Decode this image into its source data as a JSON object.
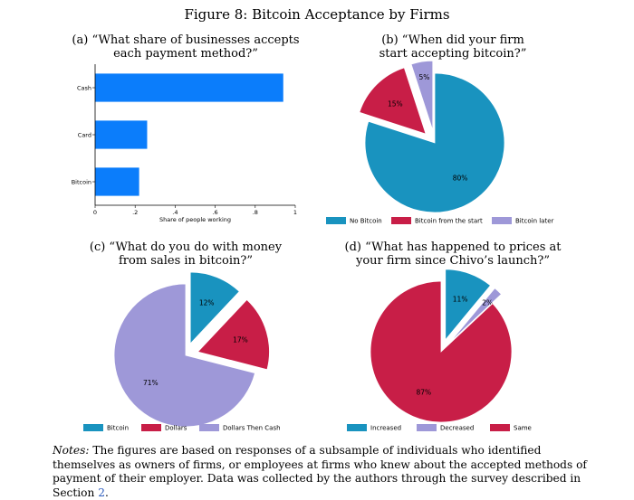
{
  "figure_title": "Figure 8: Bitcoin Acceptance by Firms",
  "colors": {
    "bar": "#0b7dfb",
    "teal": "#1993bf",
    "crimson": "#c81e47",
    "lavender": "#9e98d8",
    "link": "#2f5fbf"
  },
  "chart_data": [
    {
      "panel": "a",
      "type": "bar",
      "orientation": "horizontal",
      "title_lines": [
        "(a) “What share of businesses accepts",
        "each payment method?”"
      ],
      "categories": [
        "Cash",
        "Card",
        "Bitcoin"
      ],
      "values": [
        0.94,
        0.26,
        0.22
      ],
      "xlabel": "Share of people working",
      "ylabel": "",
      "xlim": [
        0,
        1
      ],
      "xticks": [
        0,
        0.2,
        0.4,
        0.6,
        0.8,
        1
      ],
      "xtick_labels": [
        "0",
        ".2",
        ".4",
        ".6",
        ".8",
        "1"
      ],
      "grid": false
    },
    {
      "panel": "b",
      "type": "pie",
      "title_lines": [
        "(b) “When did your firm",
        "start accepting bitcoin?”"
      ],
      "slices": [
        {
          "label": "No Bitcoin",
          "value": 80,
          "text": "80%",
          "color": "#1993bf",
          "exploded": false
        },
        {
          "label": "Bitcoin from the start",
          "value": 15,
          "text": "15%",
          "color": "#c81e47",
          "exploded": true
        },
        {
          "label": "Bitcoin later",
          "value": 5,
          "text": "5%",
          "color": "#9e98d8",
          "exploded": true
        }
      ],
      "legend_position": "bottom"
    },
    {
      "panel": "c",
      "type": "pie",
      "title_lines": [
        "(c) “What do you do with money",
        "from sales in bitcoin?”"
      ],
      "slices": [
        {
          "label": "Bitcoin",
          "value": 12,
          "text": "12%",
          "color": "#1993bf",
          "exploded": true
        },
        {
          "label": "Dollars",
          "value": 17,
          "text": "17%",
          "color": "#c81e47",
          "exploded": true
        },
        {
          "label": "Dollars Then Cash",
          "value": 71,
          "text": "71%",
          "color": "#9e98d8",
          "exploded": false
        }
      ],
      "legend_position": "bottom"
    },
    {
      "panel": "d",
      "type": "pie",
      "title_lines": [
        "(d) “What has happened to prices at",
        "your firm since Chivo’s launch?”"
      ],
      "slices": [
        {
          "label": "Increased",
          "value": 11,
          "text": "11%",
          "color": "#1993bf",
          "exploded": true
        },
        {
          "label": "Decreased",
          "value": 2,
          "text": "2%",
          "color": "#9e98d8",
          "exploded": true
        },
        {
          "label": "Same",
          "value": 87,
          "text": "87%",
          "color": "#c81e47",
          "exploded": false
        }
      ],
      "legend_position": "bottom"
    }
  ],
  "notes": {
    "label": "Notes:",
    "text": " The figures are based on responses of a subsample of individuals who identified themselves as owners of firms, or employees at firms who knew about the accepted methods of payment of their employer. Data was collected by the authors through the survey described in Section ",
    "link_text": "2",
    "end": "."
  }
}
